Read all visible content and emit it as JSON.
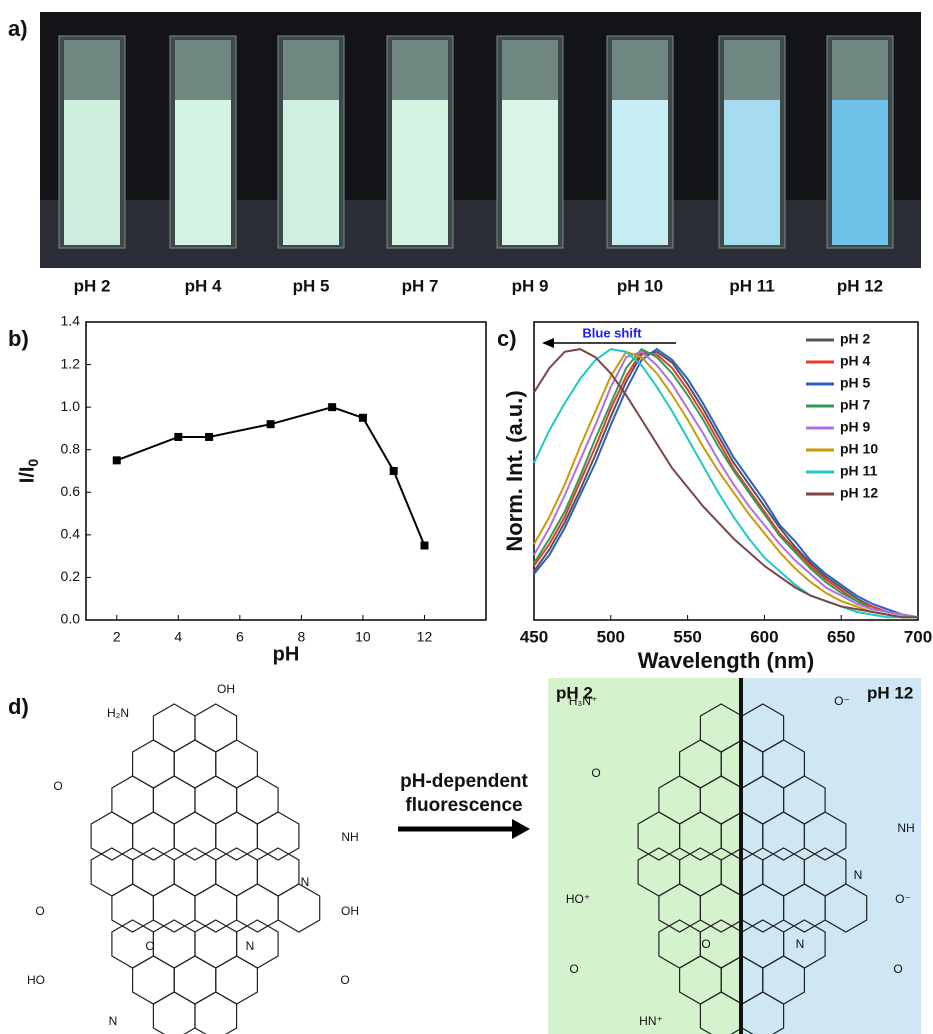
{
  "panel_labels": [
    "a)",
    "b)",
    "c)",
    "d)"
  ],
  "panel_a": {
    "labels": [
      "pH 2",
      "pH 4",
      "pH 5",
      "pH 7",
      "pH 9",
      "pH 10",
      "pH 11",
      "pH 12"
    ]
  },
  "chart_data": [
    {
      "type": "line",
      "xlabel": "pH",
      "ylabel": "I/I",
      "ylabel_subscript": "0",
      "x": [
        2,
        4,
        5,
        7,
        9,
        10,
        11,
        12
      ],
      "values": [
        0.75,
        0.86,
        0.86,
        0.92,
        1.0,
        0.95,
        0.7,
        0.35
      ],
      "color": "#000000",
      "xlim": [
        1,
        14
      ],
      "xticks": [
        2,
        4,
        6,
        8,
        10,
        12
      ],
      "ylim": [
        0,
        1.4
      ],
      "yticks": [
        {
          "value": 0,
          "label": "0.0"
        },
        0.2,
        0.4,
        0.6,
        0.8,
        {
          "value": 1,
          "label": "1.0"
        },
        1.2,
        1.4
      ]
    },
    {
      "type": "line",
      "xlabel": "Wavelength (nm)",
      "ylabel": "Norm. Int. (a.u.)",
      "annotation": "Blue shift",
      "x": [
        450,
        460,
        470,
        480,
        490,
        500,
        510,
        520,
        530,
        540,
        550,
        560,
        570,
        580,
        590,
        600,
        610,
        620,
        630,
        640,
        650,
        660,
        670,
        680,
        690,
        700
      ],
      "series": [
        {
          "name": "pH 2",
          "color": "#555555",
          "values": [
            0.18,
            0.26,
            0.36,
            0.48,
            0.61,
            0.75,
            0.88,
            0.98,
            0.99,
            0.95,
            0.87,
            0.78,
            0.68,
            0.58,
            0.5,
            0.42,
            0.34,
            0.27,
            0.21,
            0.16,
            0.12,
            0.08,
            0.05,
            0.03,
            0.02,
            0.01
          ]
        },
        {
          "name": "pH 4",
          "color": "#e8392b",
          "values": [
            0.2,
            0.28,
            0.38,
            0.51,
            0.64,
            0.78,
            0.9,
            0.99,
            0.98,
            0.93,
            0.85,
            0.76,
            0.66,
            0.56,
            0.48,
            0.4,
            0.32,
            0.26,
            0.2,
            0.15,
            0.11,
            0.07,
            0.05,
            0.03,
            0.02,
            0.01
          ]
        },
        {
          "name": "pH 5",
          "color": "#2d5fc4",
          "values": [
            0.17,
            0.24,
            0.34,
            0.46,
            0.58,
            0.72,
            0.85,
            0.96,
            1.0,
            0.96,
            0.89,
            0.8,
            0.7,
            0.6,
            0.52,
            0.44,
            0.35,
            0.29,
            0.22,
            0.17,
            0.13,
            0.09,
            0.06,
            0.04,
            0.02,
            0.01
          ]
        },
        {
          "name": "pH 7",
          "color": "#2e9e57",
          "values": [
            0.21,
            0.3,
            0.4,
            0.53,
            0.67,
            0.8,
            0.93,
            1.0,
            0.97,
            0.91,
            0.83,
            0.74,
            0.64,
            0.55,
            0.47,
            0.39,
            0.31,
            0.25,
            0.19,
            0.14,
            0.1,
            0.07,
            0.04,
            0.03,
            0.02,
            0.01
          ]
        },
        {
          "name": "pH 9",
          "color": "#b36fe0",
          "values": [
            0.24,
            0.34,
            0.46,
            0.59,
            0.72,
            0.86,
            0.97,
            0.99,
            0.94,
            0.87,
            0.78,
            0.69,
            0.59,
            0.5,
            0.42,
            0.35,
            0.28,
            0.22,
            0.17,
            0.12,
            0.09,
            0.06,
            0.04,
            0.03,
            0.02,
            0.01
          ]
        },
        {
          "name": "pH 10",
          "color": "#cc9a06",
          "values": [
            0.28,
            0.38,
            0.5,
            0.64,
            0.77,
            0.9,
            0.99,
            0.97,
            0.91,
            0.83,
            0.74,
            0.64,
            0.55,
            0.47,
            0.39,
            0.32,
            0.25,
            0.19,
            0.14,
            0.1,
            0.07,
            0.05,
            0.03,
            0.02,
            0.01,
            0.01
          ]
        },
        {
          "name": "pH 11",
          "color": "#1fc8c8",
          "values": [
            0.58,
            0.7,
            0.8,
            0.89,
            0.96,
            1.0,
            0.99,
            0.94,
            0.86,
            0.77,
            0.67,
            0.57,
            0.47,
            0.38,
            0.3,
            0.23,
            0.18,
            0.13,
            0.09,
            0.07,
            0.05,
            0.03,
            0.02,
            0.01,
            0.01,
            0.01
          ]
        },
        {
          "name": "pH 12",
          "color": "#7a4646",
          "values": [
            0.84,
            0.93,
            0.99,
            1.0,
            0.97,
            0.91,
            0.83,
            0.74,
            0.65,
            0.56,
            0.49,
            0.42,
            0.36,
            0.3,
            0.25,
            0.2,
            0.16,
            0.12,
            0.09,
            0.07,
            0.05,
            0.04,
            0.03,
            0.02,
            0.01,
            0.01
          ]
        }
      ],
      "xlim": [
        450,
        700
      ],
      "xticks": [
        450,
        500,
        550,
        600,
        650,
        700
      ],
      "ylim": [
        0,
        1.1
      ]
    }
  ],
  "panel_d": {
    "left_atoms": [
      "OH",
      "H₂N",
      "O",
      "NH",
      "N",
      "O",
      "HO",
      "OH",
      "O",
      "O",
      "N",
      "N"
    ],
    "arrow_text": [
      "pH-dependent",
      "fluorescence"
    ],
    "right_labels": [
      "pH 2",
      "pH 12"
    ],
    "right_atoms": [
      "H₃N⁺",
      "O⁻",
      "O",
      "NH",
      "N",
      "HO⁺",
      "O",
      "O⁻",
      "O",
      "O",
      "N",
      "HN⁺"
    ]
  }
}
